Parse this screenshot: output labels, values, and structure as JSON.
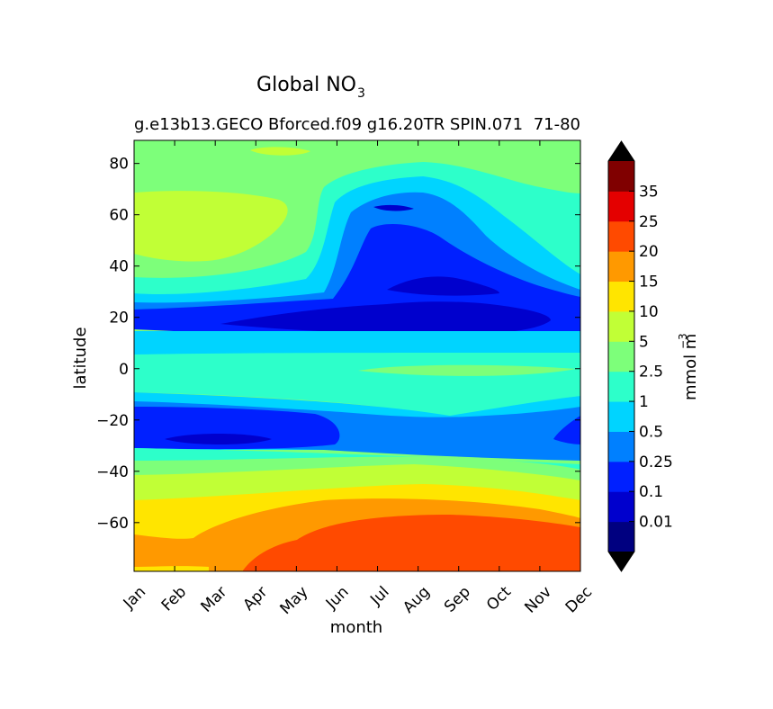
{
  "chart_data": {
    "type": "filled-contour",
    "title": "Global NO",
    "title_subscript": "3",
    "subtitle": "g.e13b13.GECO Bforced.f09 g16.20TR SPIN.071",
    "subtitle_right": "71-80",
    "xlabel": "month",
    "ylabel": "latitude",
    "x_ticks": [
      "Jan",
      "Feb",
      "Mar",
      "Apr",
      "May",
      "Jun",
      "Jul",
      "Aug",
      "Sep",
      "Oct",
      "Nov",
      "Dec"
    ],
    "y_ticks": [
      80,
      60,
      40,
      20,
      0,
      -20,
      -40,
      -60
    ],
    "y_tick_labels": [
      "80",
      "60",
      "40",
      "20",
      "0",
      "−20",
      "−40",
      "−60"
    ],
    "ylim": [
      -79,
      89
    ],
    "colorbar": {
      "label": "mmol m",
      "label_superscript": "−3",
      "levels": [
        0,
        0.01,
        0.1,
        0.25,
        0.5,
        1,
        2.5,
        5,
        10,
        15,
        20,
        25,
        35,
        40
      ],
      "tick_labels": [
        "0.01",
        "0.1",
        "0.25",
        "0.5",
        "1",
        "2.5",
        "5",
        "10",
        "15",
        "20",
        "25",
        "35"
      ],
      "colors": [
        "#000080",
        "#0000cd",
        "#0020ff",
        "#0080ff",
        "#00d4ff",
        "#2dffca",
        "#7dff7a",
        "#c1ff36",
        "#ffe500",
        "#ff9900",
        "#ff4a00",
        "#e40000",
        "#800000"
      ],
      "extend_low_color": "#000000",
      "extend_high_color": "#000000"
    },
    "latitude_profile_mid_year": [
      {
        "lat": 86,
        "class": "2.5-5"
      },
      {
        "lat": 75,
        "class": "1-2.5"
      },
      {
        "lat": 55,
        "class": "0.25-0.5"
      },
      {
        "lat": 35,
        "class": "0.1-0.25"
      },
      {
        "lat": 18,
        "class": "0.01-0.1"
      },
      {
        "lat": 5,
        "class": "1-2.5"
      },
      {
        "lat": -10,
        "class": "0.5-1"
      },
      {
        "lat": -25,
        "class": "0.25-0.5"
      },
      {
        "lat": -40,
        "class": "2.5-5"
      },
      {
        "lat": -50,
        "class": "10-15"
      },
      {
        "lat": -62,
        "class": "15-20"
      },
      {
        "lat": -72,
        "class": "20-25"
      }
    ]
  }
}
